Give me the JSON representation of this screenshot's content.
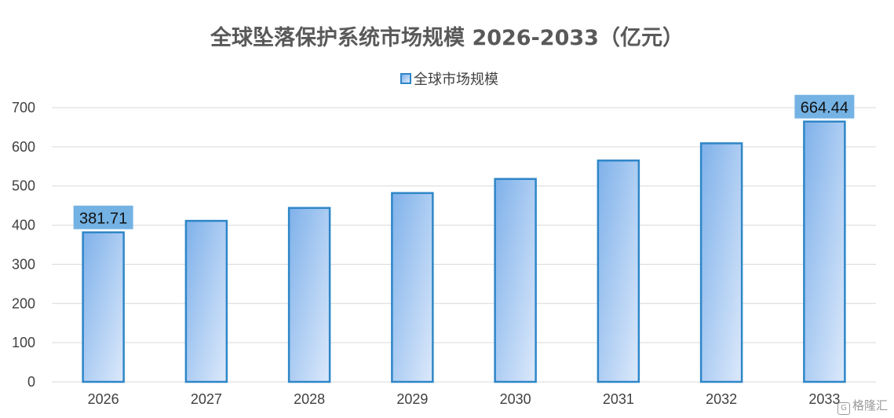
{
  "chart_data": {
    "type": "bar",
    "title": "全球坠落保护系统市场规模 2026-2033（亿元）",
    "categories": [
      "2026",
      "2027",
      "2028",
      "2029",
      "2030",
      "2031",
      "2032",
      "2033"
    ],
    "series": [
      {
        "name": "全球市场规模",
        "values": [
          381.71,
          411,
          444,
          482,
          518,
          565,
          609,
          664.44
        ]
      }
    ],
    "data_labels": [
      {
        "category": "2026",
        "text": "381.71"
      },
      {
        "category": "2033",
        "text": "664.44"
      }
    ],
    "yticks": [
      "0",
      "100",
      "200",
      "300",
      "400",
      "500",
      "600",
      "700"
    ],
    "ylim": [
      0,
      700
    ],
    "grid": true,
    "legend_position": "top",
    "colors": {
      "bar_border": "#2e86c8",
      "bar_fill_start": "#7fb1ea",
      "bar_fill_end": "#dce9fb",
      "label_box": "#74b2e4",
      "grid": "#d9d9d9"
    }
  },
  "watermark": {
    "icon": "gelonghui-logo-icon",
    "text": "格隆汇"
  }
}
